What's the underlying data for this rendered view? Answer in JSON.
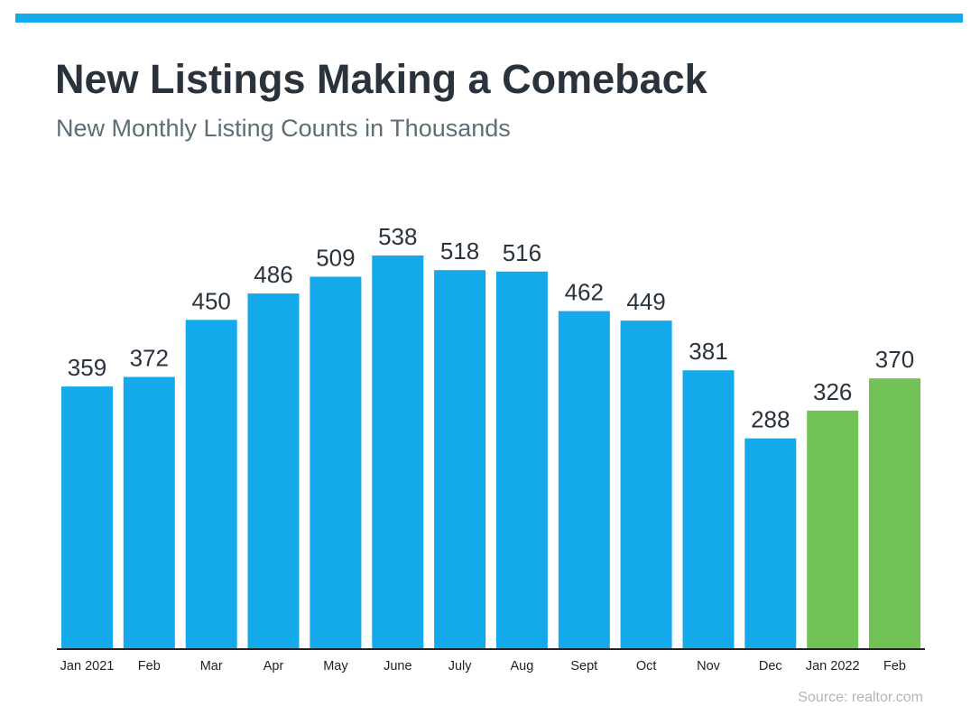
{
  "header": {
    "title": "New Listings Making a Comeback",
    "subtitle": "New Monthly Listing Counts in Thousands"
  },
  "footer": {
    "source": "Source: realtor.com"
  },
  "colors": {
    "accent_bar": "#14a9eb",
    "bar_2021": "#14a9eb",
    "bar_2022": "#72c356",
    "text_dark": "#2a333b"
  },
  "chart_data": {
    "type": "bar",
    "title": "New Listings Making a Comeback",
    "subtitle": "New Monthly Listing Counts in Thousands",
    "xlabel": "",
    "ylabel": "",
    "ylim": [
      0,
      538
    ],
    "grid": false,
    "categories": [
      "Jan 2021",
      "Feb",
      "Mar",
      "Apr",
      "May",
      "June",
      "July",
      "Aug",
      "Sept",
      "Oct",
      "Nov",
      "Dec",
      "Jan 2022",
      "Feb"
    ],
    "values": [
      359,
      372,
      450,
      486,
      509,
      538,
      518,
      516,
      462,
      449,
      381,
      288,
      326,
      370
    ],
    "bar_colors": [
      "#14a9eb",
      "#14a9eb",
      "#14a9eb",
      "#14a9eb",
      "#14a9eb",
      "#14a9eb",
      "#14a9eb",
      "#14a9eb",
      "#14a9eb",
      "#14a9eb",
      "#14a9eb",
      "#14a9eb",
      "#72c356",
      "#72c356"
    ]
  }
}
